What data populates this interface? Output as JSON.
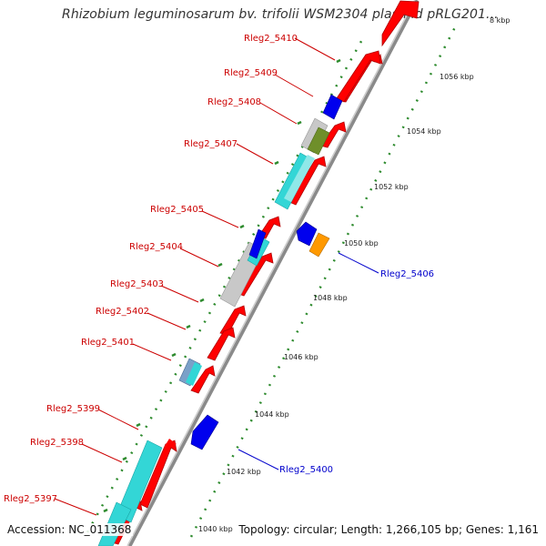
{
  "title": "Rhizobium leguminosarum bv. trifolii WSM2304 plasmid pRLG201...",
  "footer": {
    "accession": "Accession: NC_011368",
    "summary": "Topology: circular; Length: 1,266,105 bp; Genes: 1,161"
  },
  "colors": {
    "backbone": "#9a9a9a",
    "ruler_dots": "#2e8b2e",
    "forward_label": "#cc0000",
    "reverse_label": "#0000cc",
    "cds": "#ff0000",
    "blue_gene": "#0000ee",
    "orange_gene": "#ff9900",
    "cyan_feature": "#33d6d6",
    "gray_feature": "#c8c8c8",
    "olive_feature": "#6f8f2a"
  },
  "ticks": [
    "1040 kbp",
    "1042 kbp",
    "1044 kbp",
    "1046 kbp",
    "1048 kbp",
    "1050 kbp",
    "1052 kbp",
    "1054 kbp",
    "1056 kbp",
    "8 kbp"
  ],
  "forward_labels": [
    "Rleg2_5410",
    "Rleg2_5409",
    "Rleg2_5408",
    "Rleg2_5407",
    "Rleg2_5405",
    "Rleg2_5404",
    "Rleg2_5403",
    "Rleg2_5402",
    "Rleg2_5401",
    "Rleg2_5399",
    "Rleg2_5398",
    "Rleg2_5397"
  ],
  "reverse_labels": [
    "Rleg2_5406",
    "Rleg2_5400"
  ]
}
